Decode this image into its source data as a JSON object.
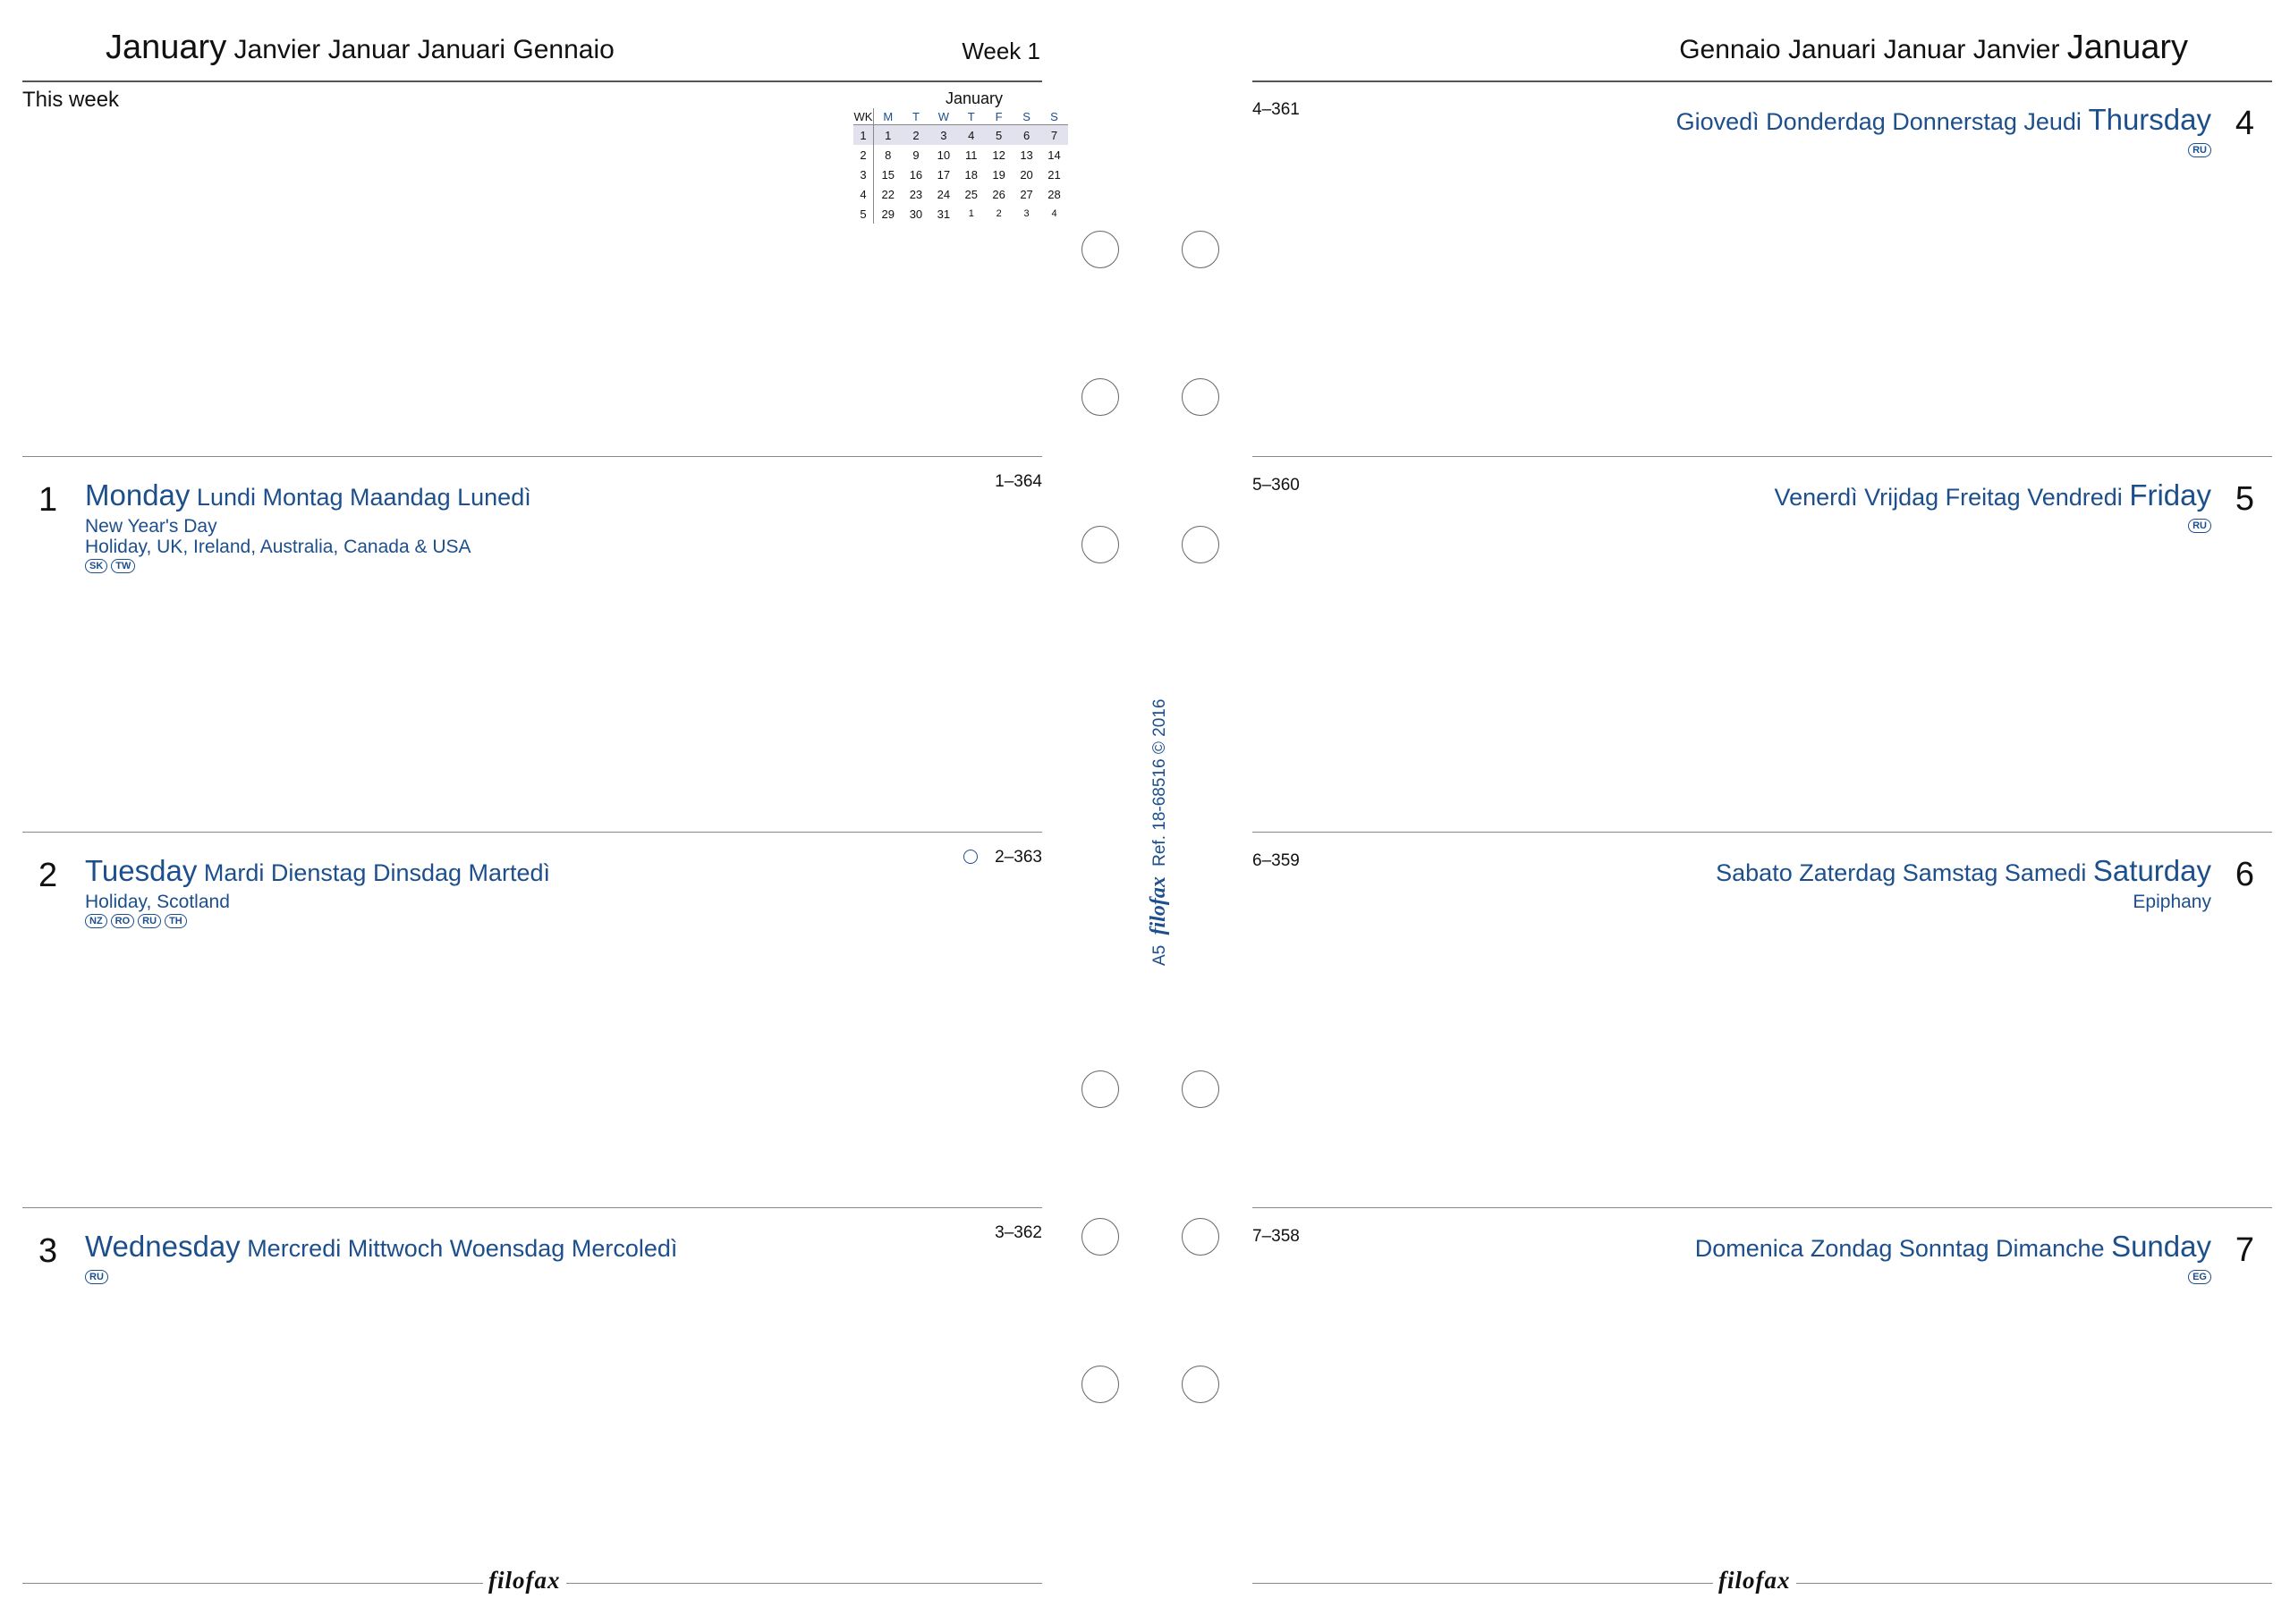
{
  "left_page": {
    "month_big": "January",
    "month_others": "Janvier Januar Januari Gennaio",
    "week_label": "Week 1",
    "this_week": "This week",
    "days": [
      {
        "num": "1",
        "name_big": "Monday",
        "name_others": "Lundi Montag Maandag Lunedì",
        "count": "1–364",
        "info": [
          "New Year's Day",
          "Holiday, UK, Ireland, Australia, Canada & USA"
        ],
        "badges": [
          "SK",
          "TW"
        ]
      },
      {
        "num": "2",
        "name_big": "Tuesday",
        "name_others": "Mardi Dienstag Dinsdag Martedì",
        "count": "2–363",
        "info": [
          "Holiday, Scotland"
        ],
        "badges": [
          "NZ",
          "RO",
          "RU",
          "TH"
        ]
      },
      {
        "num": "3",
        "name_big": "Wednesday",
        "name_others": "Mercredi Mittwoch Woensdag Mercoledì",
        "count": "3–362",
        "info": [],
        "badges": [
          "RU"
        ]
      }
    ]
  },
  "mini_calendar": {
    "title": "January",
    "headers": [
      "WK",
      "M",
      "T",
      "W",
      "T",
      "F",
      "S",
      "S"
    ],
    "rows": [
      [
        "1",
        "1",
        "2",
        "3",
        "4",
        "5",
        "6",
        "7"
      ],
      [
        "2",
        "8",
        "9",
        "10",
        "11",
        "12",
        "13",
        "14"
      ],
      [
        "3",
        "15",
        "16",
        "17",
        "18",
        "19",
        "20",
        "21"
      ],
      [
        "4",
        "22",
        "23",
        "24",
        "25",
        "26",
        "27",
        "28"
      ],
      [
        "5",
        "29",
        "30",
        "31",
        "1",
        "2",
        "3",
        "4"
      ]
    ],
    "current_week_row": 0
  },
  "right_page": {
    "month_others": "Gennaio Januari Januar Janvier",
    "month_big": "January",
    "days": [
      {
        "num": "4",
        "name_others": "Giovedì Donderdag Donnerstag Jeudi",
        "name_big": "Thursday",
        "count": "4–361",
        "info": [],
        "badges": [
          "RU"
        ]
      },
      {
        "num": "5",
        "name_others": "Venerdì Vrijdag Freitag Vendredi",
        "name_big": "Friday",
        "count": "5–360",
        "info": [],
        "badges": [
          "RU"
        ]
      },
      {
        "num": "6",
        "name_others": "Sabato Zaterdag Samstag Samedi",
        "name_big": "Saturday",
        "count": "6–359",
        "info": [
          "Epiphany"
        ],
        "badges": []
      },
      {
        "num": "7",
        "name_others": "Domenica Zondag Sonntag Dimanche",
        "name_big": "Sunday",
        "count": "7–358",
        "info": [],
        "badges": [
          "EG"
        ]
      }
    ]
  },
  "spine": {
    "size": "A5",
    "brand": "filofax",
    "ref": "Ref. 18-68516",
    "copyright": "© 2016"
  },
  "footer": {
    "left_logo": "filofax",
    "right_logo": "filofax"
  },
  "colors": {
    "accent_blue": "#1c4f8c",
    "rule_gray": "#888888"
  }
}
